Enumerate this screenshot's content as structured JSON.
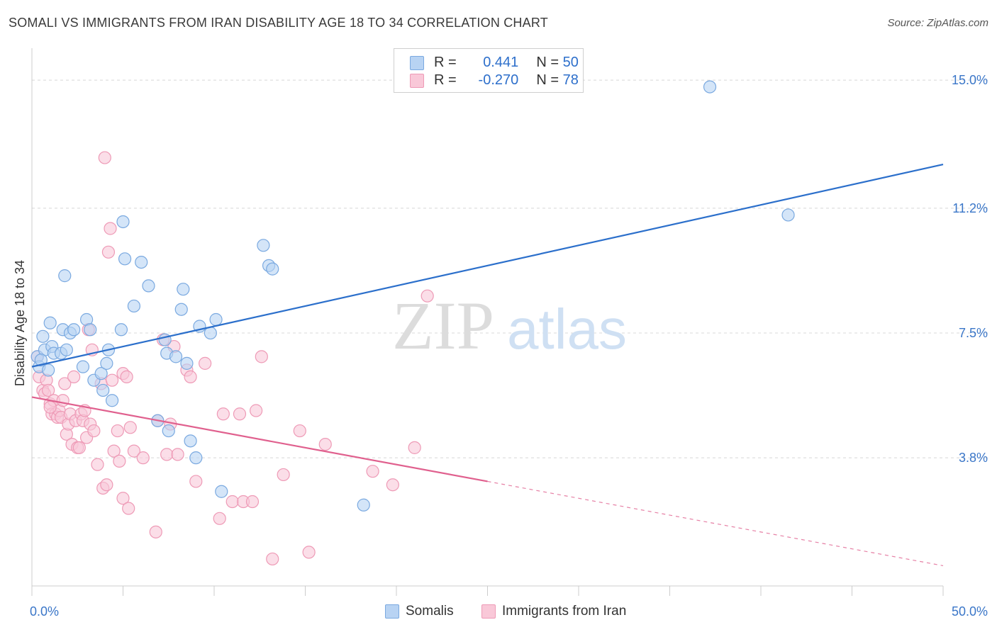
{
  "header": {
    "title": "SOMALI VS IMMIGRANTS FROM IRAN DISABILITY AGE 18 TO 34 CORRELATION CHART",
    "source": "Source: ZipAtlas.com"
  },
  "legend": {
    "rows": [
      {
        "r_label": "R =",
        "r_value": "0.441",
        "n_label": "N =",
        "n_value": "50"
      },
      {
        "r_label": "R =",
        "r_value": "-0.270",
        "n_label": "N =",
        "n_value": "78"
      }
    ]
  },
  "watermark": {
    "zip": "ZIP",
    "atlas": "atlas"
  },
  "colors": {
    "somali_fill": "#b8d3f3",
    "somali_stroke": "#7aa9e0",
    "somali_line": "#2b6fcb",
    "iran_fill": "#f9c8d8",
    "iran_stroke": "#ee9ab6",
    "iran_line": "#e0608e",
    "axis_text": "#3a76c8",
    "grid": "#d8d8d8"
  },
  "chart_data": {
    "type": "scatter",
    "title": "SOMALI VS IMMIGRANTS FROM IRAN DISABILITY AGE 18 TO 34 CORRELATION CHART",
    "xlabel": "",
    "ylabel": "Disability Age 18 to 34",
    "xlim": [
      0,
      50
    ],
    "ylim": [
      0,
      15.8
    ],
    "x_tick_labels": [
      {
        "value": 0,
        "label": "0.0%"
      },
      {
        "value": 50,
        "label": "50.0%"
      }
    ],
    "y_tick_labels": [
      {
        "value": 3.8,
        "label": "3.8%"
      },
      {
        "value": 7.5,
        "label": "7.5%"
      },
      {
        "value": 11.2,
        "label": "11.2%"
      },
      {
        "value": 15.0,
        "label": "15.0%"
      }
    ],
    "y_gridlines": [
      3.8,
      7.5,
      11.2,
      15.0
    ],
    "grid": true,
    "legend_position": "top-center",
    "series": [
      {
        "name": "Somalis",
        "color": "#b8d3f3",
        "points": [
          [
            0.3,
            6.8
          ],
          [
            0.4,
            6.5
          ],
          [
            0.6,
            7.4
          ],
          [
            0.7,
            7.0
          ],
          [
            0.9,
            6.4
          ],
          [
            1.0,
            7.8
          ],
          [
            1.1,
            7.1
          ],
          [
            1.2,
            6.9
          ],
          [
            1.6,
            6.9
          ],
          [
            1.7,
            7.6
          ],
          [
            1.8,
            9.2
          ],
          [
            1.9,
            7.0
          ],
          [
            2.1,
            7.5
          ],
          [
            2.3,
            7.6
          ],
          [
            2.8,
            6.5
          ],
          [
            3.0,
            7.9
          ],
          [
            3.2,
            7.6
          ],
          [
            3.4,
            6.1
          ],
          [
            3.8,
            6.3
          ],
          [
            3.9,
            5.8
          ],
          [
            4.1,
            6.6
          ],
          [
            4.2,
            7.0
          ],
          [
            4.4,
            5.5
          ],
          [
            4.9,
            7.6
          ],
          [
            5.0,
            10.8
          ],
          [
            5.1,
            9.7
          ],
          [
            5.6,
            8.3
          ],
          [
            6.0,
            9.6
          ],
          [
            6.4,
            8.9
          ],
          [
            6.9,
            4.9
          ],
          [
            7.3,
            7.3
          ],
          [
            7.4,
            6.9
          ],
          [
            7.5,
            4.6
          ],
          [
            7.9,
            6.8
          ],
          [
            8.2,
            8.2
          ],
          [
            8.3,
            8.8
          ],
          [
            8.5,
            6.6
          ],
          [
            8.7,
            4.3
          ],
          [
            9.0,
            3.8
          ],
          [
            9.2,
            7.7
          ],
          [
            9.8,
            7.5
          ],
          [
            10.1,
            7.9
          ],
          [
            10.4,
            2.8
          ],
          [
            12.7,
            10.1
          ],
          [
            13.0,
            9.5
          ],
          [
            13.2,
            9.4
          ],
          [
            18.2,
            2.4
          ],
          [
            37.2,
            14.8
          ],
          [
            41.5,
            11.0
          ],
          [
            0.5,
            6.7
          ]
        ],
        "trendline": {
          "x": [
            0,
            50
          ],
          "y": [
            6.5,
            12.5
          ]
        }
      },
      {
        "name": "Immigrants from Iran",
        "color": "#f9c8d8",
        "points": [
          [
            0.3,
            6.8
          ],
          [
            0.4,
            6.2
          ],
          [
            0.6,
            5.8
          ],
          [
            0.7,
            5.7
          ],
          [
            0.8,
            6.1
          ],
          [
            0.9,
            5.8
          ],
          [
            1.0,
            5.4
          ],
          [
            1.1,
            5.1
          ],
          [
            1.2,
            5.5
          ],
          [
            1.3,
            5.1
          ],
          [
            1.4,
            5.0
          ],
          [
            1.5,
            5.2
          ],
          [
            1.6,
            5.0
          ],
          [
            1.7,
            5.5
          ],
          [
            1.8,
            6.0
          ],
          [
            1.9,
            4.5
          ],
          [
            2.0,
            4.8
          ],
          [
            2.1,
            5.1
          ],
          [
            2.2,
            4.2
          ],
          [
            2.3,
            6.2
          ],
          [
            2.4,
            4.9
          ],
          [
            2.5,
            4.1
          ],
          [
            2.6,
            4.1
          ],
          [
            2.7,
            5.1
          ],
          [
            2.8,
            4.9
          ],
          [
            2.9,
            5.2
          ],
          [
            3.0,
            4.4
          ],
          [
            3.1,
            7.6
          ],
          [
            3.2,
            4.8
          ],
          [
            3.3,
            7.0
          ],
          [
            3.4,
            4.6
          ],
          [
            3.6,
            3.6
          ],
          [
            3.8,
            6.0
          ],
          [
            3.9,
            2.9
          ],
          [
            4.0,
            12.7
          ],
          [
            4.1,
            3.0
          ],
          [
            4.2,
            9.9
          ],
          [
            4.3,
            10.6
          ],
          [
            4.4,
            6.1
          ],
          [
            4.5,
            4.0
          ],
          [
            4.7,
            4.6
          ],
          [
            4.8,
            3.7
          ],
          [
            5.0,
            6.3
          ],
          [
            5.0,
            2.6
          ],
          [
            5.2,
            6.2
          ],
          [
            5.3,
            2.3
          ],
          [
            5.4,
            4.7
          ],
          [
            5.6,
            4.0
          ],
          [
            6.1,
            3.8
          ],
          [
            6.8,
            1.6
          ],
          [
            6.9,
            4.9
          ],
          [
            7.2,
            7.3
          ],
          [
            7.4,
            3.9
          ],
          [
            7.6,
            4.8
          ],
          [
            7.8,
            7.1
          ],
          [
            8.0,
            3.9
          ],
          [
            8.5,
            6.4
          ],
          [
            8.7,
            6.2
          ],
          [
            9.0,
            3.1
          ],
          [
            9.5,
            6.6
          ],
          [
            10.3,
            2.0
          ],
          [
            10.5,
            5.1
          ],
          [
            11.0,
            2.5
          ],
          [
            11.4,
            5.1
          ],
          [
            11.6,
            2.5
          ],
          [
            12.1,
            2.5
          ],
          [
            12.3,
            5.2
          ],
          [
            12.6,
            6.8
          ],
          [
            13.2,
            0.8
          ],
          [
            13.8,
            3.3
          ],
          [
            14.7,
            4.6
          ],
          [
            15.2,
            1.0
          ],
          [
            16.1,
            4.2
          ],
          [
            18.7,
            3.4
          ],
          [
            19.8,
            3.0
          ],
          [
            21.0,
            4.1
          ],
          [
            21.7,
            8.6
          ],
          [
            1.0,
            5.3
          ]
        ],
        "trendline": {
          "x": [
            0,
            25
          ],
          "y": [
            5.6,
            3.1
          ]
        },
        "trendline_extension": {
          "x": [
            25,
            50
          ],
          "y": [
            3.1,
            0.6
          ]
        }
      }
    ]
  }
}
